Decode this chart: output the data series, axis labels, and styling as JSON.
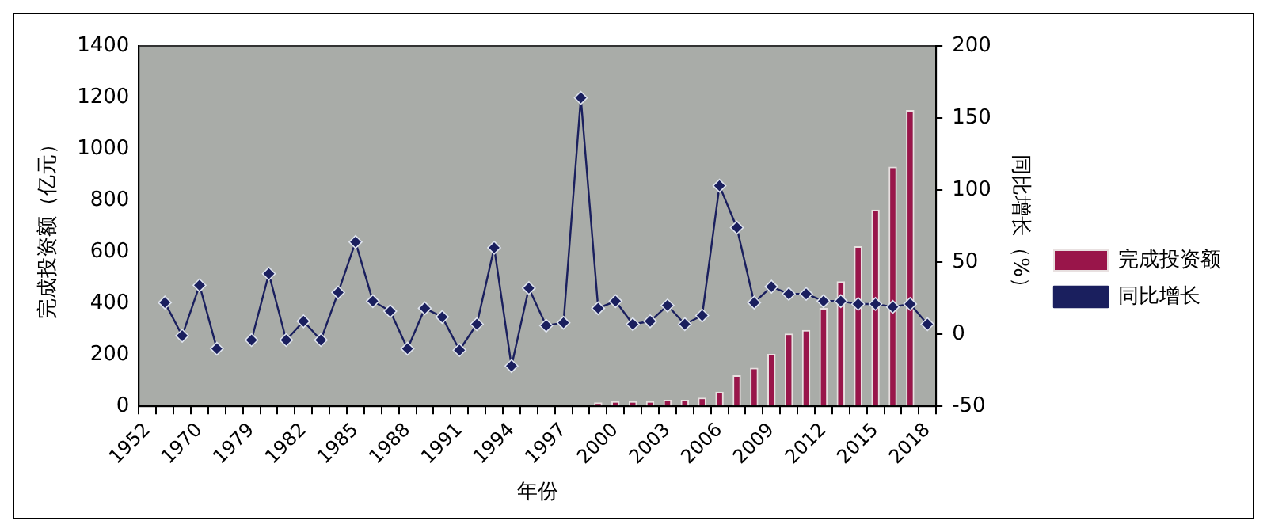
{
  "chart_data": {
    "type": "bar",
    "xlabel": "年份",
    "ylabel": "完成投资额（亿元）",
    "y2label": "同比增长（%）",
    "categories": [
      "1952",
      null,
      null,
      "1970",
      null,
      null,
      "1979",
      null,
      null,
      "1982",
      null,
      null,
      "1985",
      null,
      null,
      "1988",
      null,
      null,
      "1991",
      null,
      null,
      "1994",
      null,
      null,
      "1997",
      null,
      null,
      "2000",
      null,
      null,
      "2003",
      null,
      null,
      "2006",
      null,
      null,
      "2009",
      null,
      null,
      "2012",
      null,
      null,
      "2015",
      null,
      null,
      "2018"
    ],
    "series": [
      {
        "name": "完成投资额",
        "axis": "y",
        "color": "#99154a",
        "values": [
          null,
          null,
          null,
          null,
          null,
          null,
          null,
          null,
          null,
          null,
          null,
          null,
          null,
          null,
          null,
          null,
          null,
          null,
          null,
          null,
          null,
          null,
          null,
          null,
          null,
          null,
          15,
          20,
          20,
          20,
          25,
          25,
          34,
          57,
          121,
          150,
          204,
          283,
          297,
          382,
          486,
          622,
          764,
          931,
          1151,
          null
        ]
      },
      {
        "name": "同比增长",
        "type": "line",
        "axis": "y2",
        "color": "#1a1f5e",
        "marker": "diamond",
        "values": [
          null,
          22,
          -1,
          34,
          -10,
          null,
          -4,
          42,
          -4,
          9,
          -4,
          29,
          64,
          23,
          16,
          -10,
          18,
          12,
          -11,
          7,
          60,
          -22,
          32,
          6,
          8,
          164,
          18,
          23,
          7,
          9,
          20,
          7,
          13,
          103,
          74,
          22,
          33,
          28,
          28,
          23,
          23,
          21,
          21,
          19,
          21,
          7
        ]
      }
    ],
    "ylim": [
      0,
      1400
    ],
    "yticks": [
      0,
      200,
      400,
      600,
      800,
      1000,
      1200,
      1400
    ],
    "y2lim": [
      -50,
      200
    ],
    "y2ticks": [
      -50,
      0,
      50,
      100,
      150,
      200
    ],
    "grid": false,
    "legend": "right"
  }
}
